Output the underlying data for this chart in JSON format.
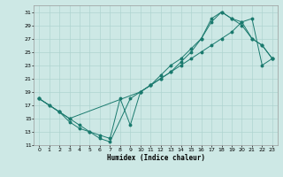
{
  "xlabel": "Humidex (Indice chaleur)",
  "xlim": [
    -0.5,
    23.5
  ],
  "ylim": [
    11,
    32
  ],
  "yticks": [
    11,
    13,
    15,
    17,
    19,
    21,
    23,
    25,
    27,
    29,
    31
  ],
  "xticks": [
    0,
    1,
    2,
    3,
    4,
    5,
    6,
    7,
    8,
    9,
    10,
    11,
    12,
    13,
    14,
    15,
    16,
    17,
    18,
    19,
    20,
    21,
    22,
    23
  ],
  "bg_color": "#cde8e5",
  "line_color": "#1a7a6e",
  "grid_color": "#afd4d0",
  "line1_x": [
    0,
    1,
    2,
    3,
    4,
    5,
    6,
    7,
    8,
    9,
    10,
    11,
    12,
    13,
    14,
    15,
    16,
    17,
    18,
    19,
    20,
    21,
    22,
    23
  ],
  "line1_y": [
    18,
    17,
    16,
    15,
    14,
    13,
    12.5,
    12,
    18,
    14,
    19,
    20,
    21.5,
    23,
    24,
    25.5,
    27,
    29.5,
    31,
    30,
    29.5,
    27,
    26,
    24
  ],
  "line2_x": [
    0,
    1,
    2,
    3,
    4,
    5,
    6,
    7,
    9,
    10,
    11,
    12,
    13,
    14,
    15,
    16,
    17,
    18,
    19,
    20,
    21,
    22,
    23
  ],
  "line2_y": [
    18,
    17,
    16,
    14.5,
    13.5,
    13,
    12,
    11.5,
    18,
    19,
    20,
    21,
    22,
    23.5,
    25,
    27,
    30,
    31,
    30,
    29,
    27,
    26,
    24
  ],
  "line3_x": [
    0,
    2,
    3,
    10,
    11,
    12,
    13,
    14,
    15,
    16,
    17,
    18,
    19,
    20,
    21,
    22,
    23
  ],
  "line3_y": [
    18,
    16,
    15,
    19,
    20,
    21,
    22,
    23,
    24,
    25,
    26,
    27,
    28,
    29.5,
    30,
    23,
    24
  ]
}
